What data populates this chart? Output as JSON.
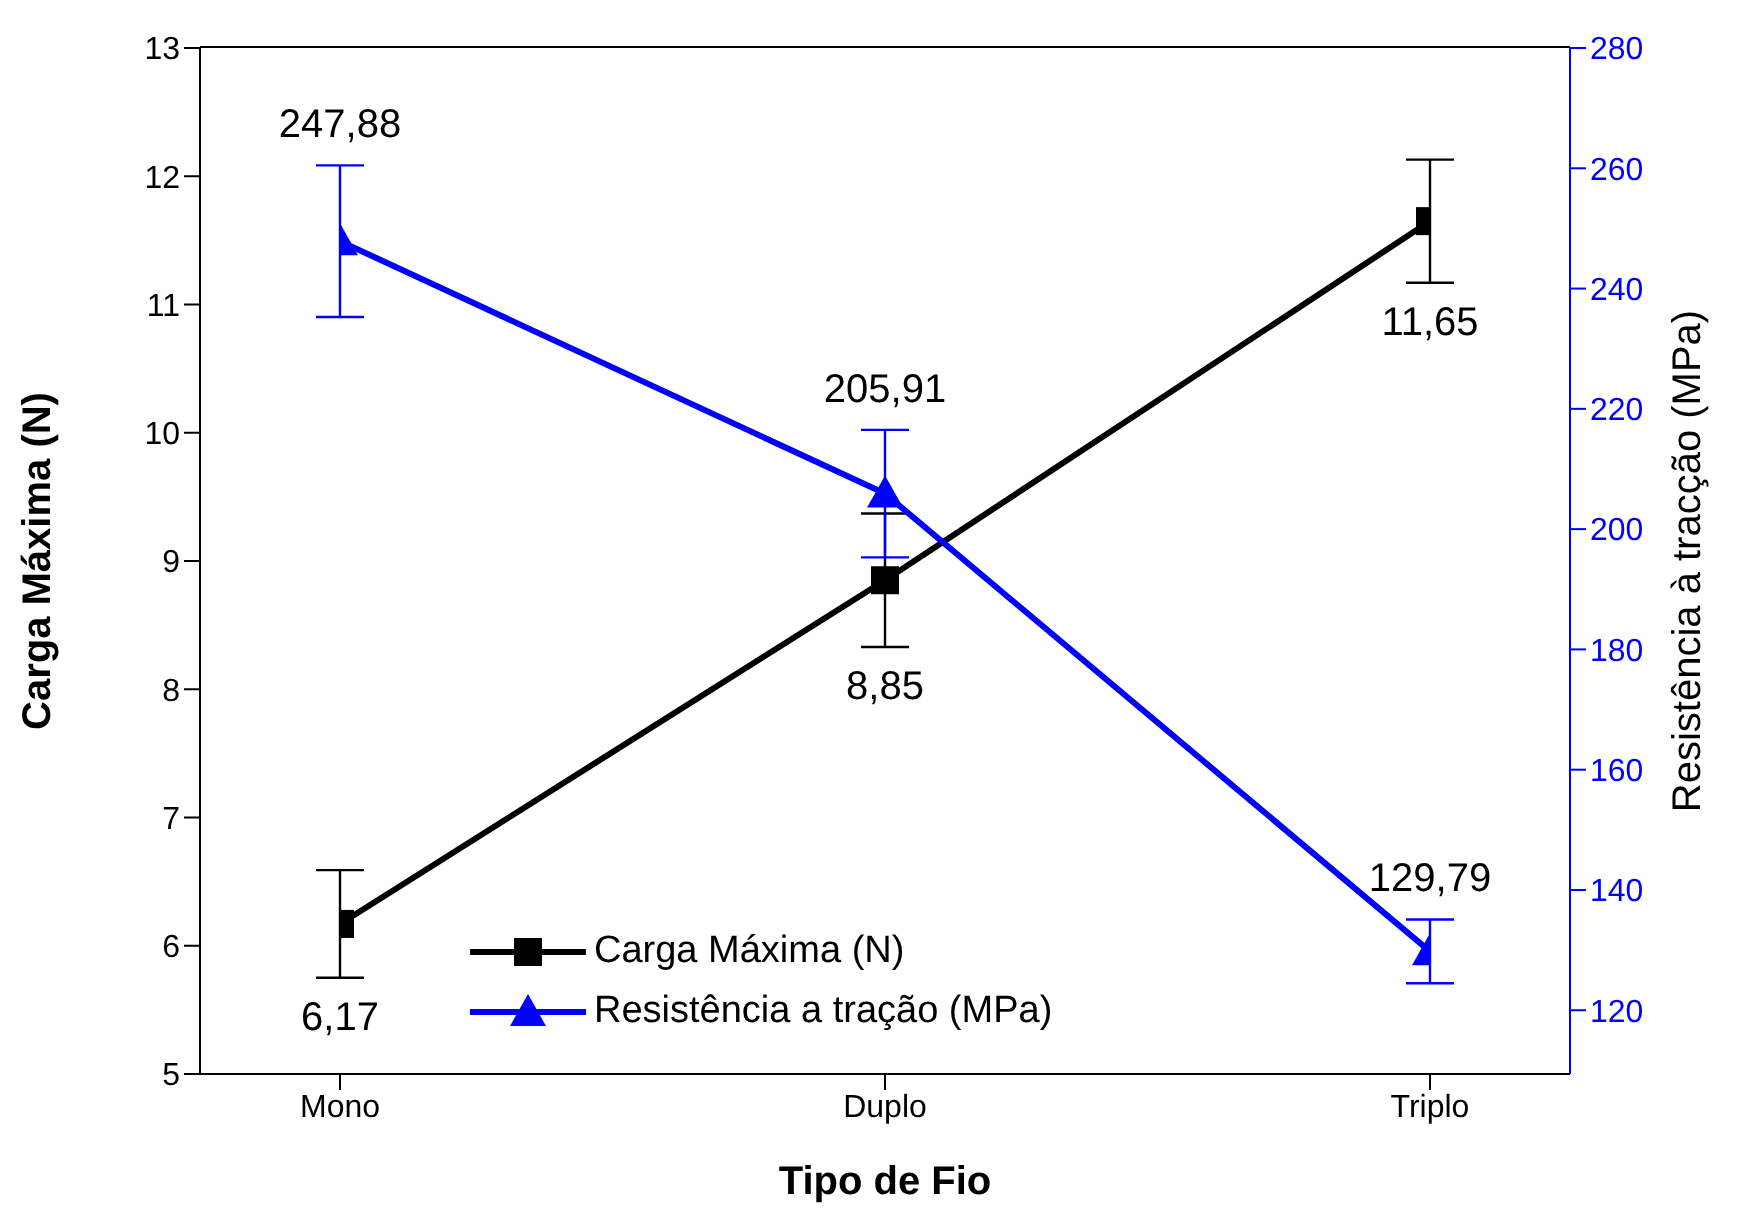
{
  "chart_data": {
    "type": "line",
    "xlabel": "Tipo de Fio",
    "ylabel": "Carga Máxima (N)",
    "y2label": "Resistência à tracção (MPa)",
    "categories": [
      "Mono",
      "Duplo",
      "Triplo"
    ],
    "ylim": [
      5,
      13
    ],
    "yticks": [
      5,
      6,
      7,
      8,
      9,
      10,
      11,
      12,
      13
    ],
    "y2lim": [
      109.4,
      280
    ],
    "y2ticks": [
      120,
      140,
      160,
      180,
      200,
      220,
      240,
      260,
      280
    ],
    "series": [
      {
        "name": "Carga Máxima (N)",
        "color": "#000000",
        "values": [
          6.17,
          8.85,
          11.65
        ],
        "errors": [
          0.42,
          0.52,
          0.48
        ],
        "marker": "square",
        "value_labels": [
          "6,17",
          "8,85",
          "11,65"
        ]
      },
      {
        "name": "Resistência a tração (MPa)",
        "color": "#0000ff",
        "axis": "y2",
        "values": [
          247.88,
          205.91,
          129.79
        ],
        "errors": [
          12.6,
          10.6,
          5.3
        ],
        "marker": "triangle",
        "value_labels": [
          "247,88",
          "205,91",
          "129,79"
        ]
      }
    ],
    "legend": "bottom left",
    "grid": false
  }
}
